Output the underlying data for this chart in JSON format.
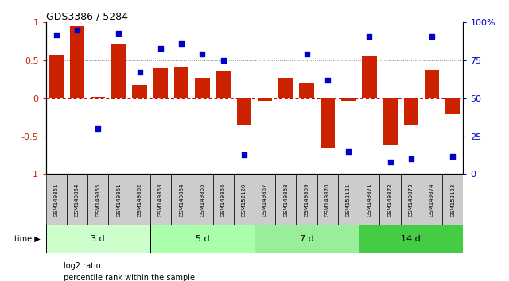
{
  "title": "GDS3386 / 5284",
  "samples": [
    "GSM149851",
    "GSM149854",
    "GSM149855",
    "GSM149861",
    "GSM149862",
    "GSM149863",
    "GSM149864",
    "GSM149865",
    "GSM149866",
    "GSM152120",
    "GSM149867",
    "GSM149868",
    "GSM149869",
    "GSM149870",
    "GSM152121",
    "GSM149871",
    "GSM149872",
    "GSM149873",
    "GSM149874",
    "GSM152123"
  ],
  "log2_ratio": [
    0.57,
    0.95,
    0.02,
    0.72,
    0.18,
    0.4,
    0.42,
    0.27,
    0.35,
    -0.35,
    -0.03,
    0.27,
    0.2,
    -0.65,
    -0.03,
    0.55,
    -0.62,
    -0.35,
    0.38,
    -0.2
  ],
  "percentile_rank": [
    92,
    95,
    30,
    93,
    67,
    83,
    86,
    79,
    75,
    13,
    null,
    null,
    79,
    62,
    15,
    91,
    8,
    10,
    91,
    12
  ],
  "groups": [
    {
      "label": "3 d",
      "start": 0,
      "end": 5,
      "color": "#ccffcc"
    },
    {
      "label": "5 d",
      "start": 5,
      "end": 10,
      "color": "#aaffaa"
    },
    {
      "label": "7 d",
      "start": 10,
      "end": 15,
      "color": "#99ee99"
    },
    {
      "label": "14 d",
      "start": 15,
      "end": 20,
      "color": "#44cc44"
    }
  ],
  "bar_color": "#cc2200",
  "dot_color": "#0000cc",
  "left_yticks": [
    -1,
    -0.5,
    0,
    0.5,
    1
  ],
  "left_ylabels": [
    "-1",
    "-0.5",
    "0",
    "0.5",
    "1"
  ],
  "right_yticks": [
    0,
    25,
    50,
    75,
    100
  ],
  "right_ylabels": [
    "0",
    "25",
    "50",
    "75",
    "100%"
  ],
  "hline_color": "#cc0000",
  "dotted_line_color": "#888888",
  "background_color": "#ffffff",
  "label_bg_color": "#cccccc",
  "legend_items": [
    {
      "color": "#cc2200",
      "label": "log2 ratio"
    },
    {
      "color": "#0000cc",
      "label": "percentile rank within the sample"
    }
  ]
}
